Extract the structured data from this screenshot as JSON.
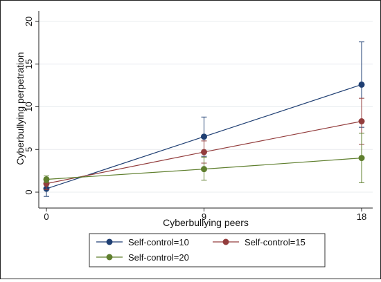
{
  "chart_data": {
    "type": "line",
    "title": "",
    "xlabel": "Cyberbullying peers",
    "ylabel": "Cyberbullying perpetration",
    "x": [
      0,
      9,
      18
    ],
    "x_ticks": [
      "0",
      "9",
      "18"
    ],
    "y_ticks": [
      "0",
      "5",
      "10",
      "15",
      "20"
    ],
    "xlim": [
      0,
      18
    ],
    "ylim": [
      0,
      20
    ],
    "grid": "horizontal",
    "legend_position": "bottom",
    "series": [
      {
        "name": "Self-control=10",
        "color": "#1f3f73",
        "values": [
          0.4,
          6.5,
          12.6
        ],
        "ci_low": [
          -0.5,
          4.2,
          7.6
        ],
        "ci_high": [
          1.3,
          8.8,
          17.6
        ]
      },
      {
        "name": "Self-control=15",
        "color": "#933d3d",
        "values": [
          1.0,
          4.7,
          8.3
        ],
        "ci_low": [
          0.3,
          3.4,
          5.6
        ],
        "ci_high": [
          1.6,
          6.0,
          11.0
        ]
      },
      {
        "name": "Self-control=20",
        "color": "#5f7f2e",
        "values": [
          1.5,
          2.7,
          4.0
        ],
        "ci_low": [
          1.1,
          1.4,
          1.1
        ],
        "ci_high": [
          1.9,
          4.1,
          6.9
        ]
      }
    ]
  }
}
